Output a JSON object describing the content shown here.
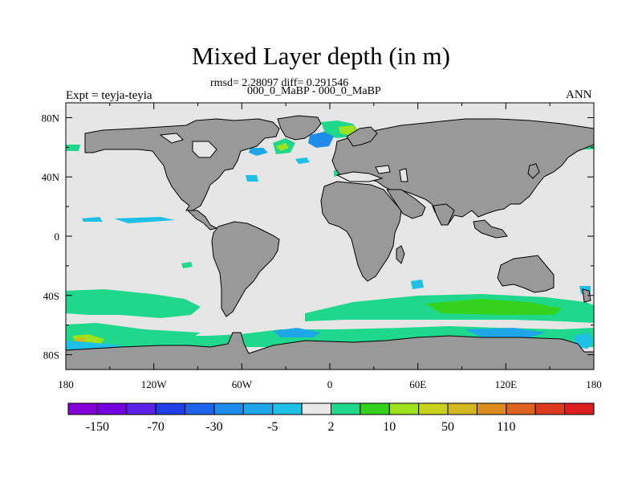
{
  "title": "Mixed Layer depth (in m)",
  "stats_line": "rmsd= 2.28097 diff= 0.291546",
  "experiment_names": "000_0_MaBP - 000_0_MaBP",
  "experiment_label": "Expt = teyja-teyia",
  "season": "ANN",
  "map": {
    "projection": "cylindrical equidistant",
    "lon_range": [
      -180,
      180
    ],
    "lat_range": [
      -90,
      90
    ],
    "lon_ticks": [
      "180",
      "120W",
      "60W",
      "0",
      "60E",
      "120E",
      "180"
    ],
    "lat_ticks": [
      "80N",
      "40N",
      "0",
      "40S",
      "80S"
    ],
    "ocean_color": "#e6e6e6",
    "land_color": "#999999"
  },
  "colorbar": {
    "colors": [
      "#8400d8",
      "#7300dc",
      "#5c22e8",
      "#1e3ee6",
      "#1e64ea",
      "#1e8cea",
      "#1ea6e8",
      "#1ec0e6",
      "#e8e8e8",
      "#20d88c",
      "#34d21c",
      "#9ee21e",
      "#c8d21e",
      "#d2b81e",
      "#dc8c1e",
      "#dc641e",
      "#dc3a1e",
      "#dc1e1e"
    ],
    "labels": [
      "-150",
      "-70",
      "-30",
      "-5",
      "2",
      "10",
      "50",
      "110"
    ]
  }
}
